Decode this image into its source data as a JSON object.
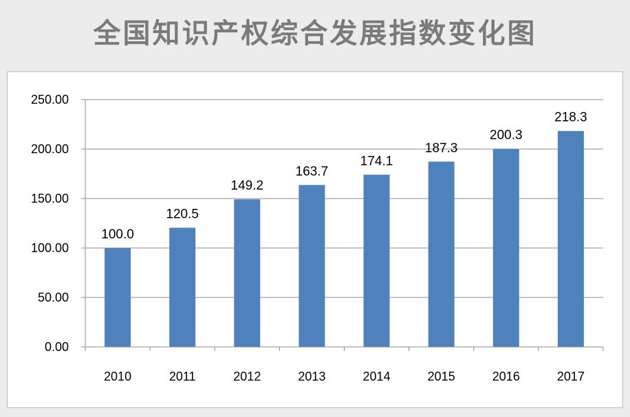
{
  "title": "全国知识产权综合发展指数变化图",
  "colors": {
    "bar": "#4f81bd",
    "grid": "#8c8c8c",
    "title": "#7a7a7a"
  },
  "chart_data": {
    "type": "bar",
    "title": "全国知识产权综合发展指数变化图",
    "categories": [
      "2010",
      "2011",
      "2012",
      "2013",
      "2014",
      "2015",
      "2016",
      "2017"
    ],
    "values": [
      100.0,
      120.5,
      149.2,
      163.7,
      174.1,
      187.3,
      200.3,
      218.3
    ],
    "value_labels": [
      "100.0",
      "120.5",
      "149.2",
      "163.7",
      "174.1",
      "187.3",
      "200.3",
      "218.3"
    ],
    "ylim": [
      0,
      250
    ],
    "yticks": [
      0,
      50,
      100,
      150,
      200,
      250
    ],
    "ytick_labels": [
      "0.00",
      "50.00",
      "100.00",
      "150.00",
      "200.00",
      "250.00"
    ],
    "grid": true,
    "legend": "none"
  }
}
